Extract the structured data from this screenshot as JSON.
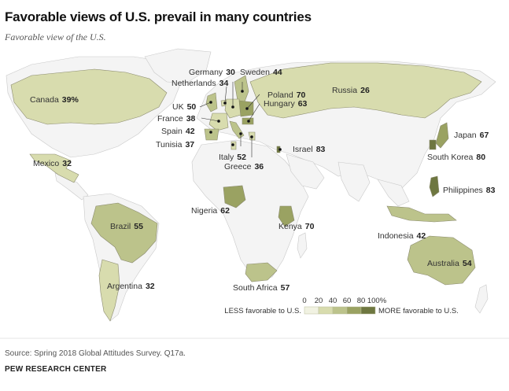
{
  "header": {
    "title": "Favorable views of U.S. prevail in many countries",
    "subtitle": "Favorable view of the U.S."
  },
  "colors": {
    "bin_0_20": "#f1f2e2",
    "bin_20_40": "#d8dcae",
    "bin_40_60": "#bcc38b",
    "bin_60_80": "#9aa262",
    "bin_80_100": "#6e7740",
    "no_data": "#f4f4f4",
    "ocean": "#ffffff"
  },
  "countries": [
    {
      "name": "Canada",
      "value": "39%"
    },
    {
      "name": "Mexico",
      "value": "32"
    },
    {
      "name": "Brazil",
      "value": "55"
    },
    {
      "name": "Argentina",
      "value": "32"
    },
    {
      "name": "Germany",
      "value": "30"
    },
    {
      "name": "Sweden",
      "value": "44"
    },
    {
      "name": "Netherlands",
      "value": "34"
    },
    {
      "name": "Poland",
      "value": "70"
    },
    {
      "name": "Hungary",
      "value": "63"
    },
    {
      "name": "UK",
      "value": "50"
    },
    {
      "name": "France",
      "value": "38"
    },
    {
      "name": "Spain",
      "value": "42"
    },
    {
      "name": "Tunisia",
      "value": "37"
    },
    {
      "name": "Italy",
      "value": "52"
    },
    {
      "name": "Greece",
      "value": "36"
    },
    {
      "name": "Israel",
      "value": "83"
    },
    {
      "name": "Russia",
      "value": "26"
    },
    {
      "name": "Japan",
      "value": "67"
    },
    {
      "name": "South Korea",
      "value": "80"
    },
    {
      "name": "Philippines",
      "value": "83"
    },
    {
      "name": "Indonesia",
      "value": "42"
    },
    {
      "name": "Australia",
      "value": "54"
    },
    {
      "name": "Nigeria",
      "value": "62"
    },
    {
      "name": "Kenya",
      "value": "70"
    },
    {
      "name": "South Africa",
      "value": "57"
    }
  ],
  "legend": {
    "ticks": [
      "0",
      "20",
      "40",
      "60",
      "80",
      "100%"
    ],
    "less_label": "LESS favorable to U.S.",
    "more_label": "MORE favorable to U.S."
  },
  "footer": {
    "source": "Source: Spring 2018 Global Attitudes Survey. Q17a.",
    "org": "PEW RESEARCH CENTER"
  }
}
